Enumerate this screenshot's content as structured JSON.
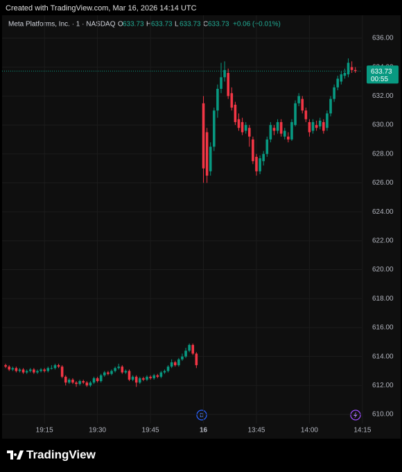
{
  "header": {
    "credit": "Created with TradingView.com, Mar 16, 2026 14:14 UTC",
    "symbol": "Meta Platforms, Inc. · 1 · NASDAQ",
    "ohlc": [
      {
        "label": "O",
        "value": 633.73
      },
      {
        "label": "H",
        "value": 633.73
      },
      {
        "label": "L",
        "value": 633.73
      },
      {
        "label": "C",
        "value": 633.73
      }
    ],
    "change": "+0.06",
    "change_pct": "(+0.01%)"
  },
  "footer": {
    "brand": "TradingView"
  },
  "chart_data": {
    "type": "candlestick",
    "up_color": "#089981",
    "down_color": "#f23645",
    "grid": true,
    "xlim": [
      -1,
      102
    ],
    "xticks": [
      {
        "value": 11,
        "label": "19:15"
      },
      {
        "value": 26,
        "label": "19:30"
      },
      {
        "value": 41,
        "label": "19:45"
      },
      {
        "value": 56,
        "label": "16"
      },
      {
        "value": 71,
        "label": "13:45"
      },
      {
        "value": 86,
        "label": "14:00"
      },
      {
        "value": 101,
        "label": "14:15"
      }
    ],
    "ylim": [
      610,
      636
    ],
    "yticks": [
      {
        "value": 610,
        "label": "610.00"
      },
      {
        "value": 612,
        "label": "612.00"
      },
      {
        "value": 614,
        "label": "614.00"
      },
      {
        "value": 616,
        "label": "616.00"
      },
      {
        "value": 618,
        "label": "618.00"
      },
      {
        "value": 620,
        "label": "620.00"
      },
      {
        "value": 622,
        "label": "622.00"
      },
      {
        "value": 624,
        "label": "624.00"
      },
      {
        "value": 626,
        "label": "626.00"
      },
      {
        "value": 628,
        "label": "628.00"
      },
      {
        "value": 630,
        "label": "630.00"
      },
      {
        "value": 632,
        "label": "632.00"
      },
      {
        "value": 634,
        "label": "634.00"
      },
      {
        "value": 636,
        "label": "636.00"
      }
    ],
    "last_price": 633.73,
    "countdown": "00:55",
    "open": [
      613.4,
      613.3,
      613.1,
      613.2,
      613.0,
      613.1,
      612.9,
      613.0,
      613.1,
      612.9,
      613.0,
      613.1,
      613.0,
      613.2,
      613.2,
      613.4,
      613.3,
      612.6,
      612.2,
      612.4,
      612.2,
      612.1,
      612.3,
      612.2,
      612.0,
      612.2,
      612.5,
      612.3,
      612.7,
      612.9,
      612.8,
      613.0,
      613.2,
      613.3,
      612.9,
      613.0,
      612.4,
      612.6,
      612.2,
      612.5,
      612.4,
      612.6,
      612.5,
      612.7,
      612.6,
      612.9,
      613.0,
      613.3,
      613.6,
      613.4,
      613.8,
      614.0,
      614.4,
      614.8,
      614.2,
      null,
      631.5,
      629.5,
      626.8,
      628.5,
      631.0,
      632.5,
      633.3,
      633.6,
      632.2,
      631.4,
      630.4,
      630.2,
      629.6,
      629.8,
      629.0,
      627.8,
      626.8,
      627.5,
      628.0,
      629.0,
      629.8,
      629.6,
      630.2,
      629.2,
      629.2,
      629.0,
      630.0,
      631.5,
      631.8,
      631.0,
      630.2,
      629.6,
      630.0,
      629.9,
      630.2,
      629.8,
      630.8,
      631.8,
      632.6,
      633.0,
      633.4,
      633.5,
      634.0,
      633.8
    ],
    "high": [
      613.5,
      613.4,
      613.3,
      613.3,
      613.2,
      613.2,
      613.1,
      613.2,
      613.2,
      613.1,
      613.2,
      613.2,
      613.3,
      613.4,
      613.5,
      613.5,
      613.4,
      612.7,
      612.5,
      612.5,
      612.3,
      612.4,
      612.4,
      612.3,
      612.3,
      612.6,
      612.6,
      612.8,
      613.0,
      613.0,
      613.1,
      613.3,
      613.5,
      613.4,
      613.1,
      613.1,
      612.7,
      612.7,
      612.6,
      612.6,
      612.7,
      612.7,
      612.8,
      612.8,
      613.0,
      613.1,
      613.4,
      613.8,
      613.7,
      613.9,
      614.2,
      614.6,
      614.9,
      614.9,
      614.3,
      null,
      632.0,
      629.8,
      628.8,
      631.2,
      632.8,
      634.3,
      634.4,
      633.9,
      632.6,
      631.6,
      630.8,
      630.5,
      630.2,
      630.0,
      629.2,
      628.0,
      627.9,
      628.2,
      629.2,
      630.2,
      630.0,
      630.4,
      630.4,
      629.8,
      629.5,
      630.4,
      631.7,
      632.2,
      632.0,
      631.2,
      630.4,
      630.4,
      630.3,
      630.5,
      630.4,
      631.0,
      632.0,
      632.8,
      633.4,
      633.7,
      633.9,
      634.6,
      634.4,
      634.0
    ],
    "low": [
      613.2,
      613.0,
      613.0,
      612.9,
      612.9,
      612.8,
      612.8,
      612.9,
      612.8,
      612.8,
      612.9,
      612.9,
      612.9,
      613.1,
      613.1,
      613.2,
      612.5,
      612.0,
      612.1,
      612.1,
      611.9,
      612.0,
      612.1,
      611.9,
      611.9,
      612.1,
      612.2,
      612.2,
      612.6,
      612.7,
      612.7,
      612.9,
      613.1,
      612.8,
      612.8,
      612.3,
      612.3,
      611.9,
      612.1,
      612.3,
      612.3,
      612.4,
      612.4,
      612.5,
      612.5,
      612.8,
      612.9,
      613.2,
      613.3,
      613.3,
      613.7,
      613.9,
      614.3,
      614.1,
      613.2,
      null,
      626.0,
      626.0,
      626.5,
      628.2,
      630.5,
      632.2,
      633.0,
      631.8,
      631.0,
      630.0,
      629.6,
      629.3,
      629.4,
      628.5,
      627.3,
      626.5,
      626.6,
      627.2,
      627.8,
      628.8,
      629.3,
      629.4,
      629.2,
      629.0,
      628.8,
      628.9,
      629.9,
      631.3,
      630.8,
      630.2,
      629.2,
      629.4,
      629.6,
      629.7,
      629.4,
      629.6,
      630.6,
      631.6,
      632.4,
      632.8,
      633.2,
      633.3,
      633.6,
      633.6
    ],
    "close": [
      613.3,
      613.1,
      613.2,
      613.0,
      613.1,
      612.9,
      613.0,
      613.1,
      612.9,
      613.0,
      613.1,
      613.0,
      613.2,
      613.2,
      613.4,
      613.3,
      612.6,
      612.2,
      612.4,
      612.2,
      612.1,
      612.3,
      612.2,
      612.0,
      612.2,
      612.5,
      612.3,
      612.7,
      612.9,
      612.8,
      613.0,
      613.2,
      613.3,
      612.9,
      613.0,
      612.4,
      612.6,
      612.2,
      612.5,
      612.4,
      612.6,
      612.5,
      612.7,
      612.6,
      612.9,
      613.0,
      613.3,
      613.6,
      613.4,
      613.8,
      614.0,
      614.4,
      614.8,
      614.2,
      613.4,
      null,
      627.0,
      626.5,
      628.5,
      631.0,
      632.5,
      633.3,
      633.8,
      632.0,
      631.2,
      630.2,
      629.8,
      629.5,
      630.0,
      629.2,
      627.5,
      626.8,
      627.7,
      628.0,
      629.0,
      630.0,
      629.6,
      630.2,
      629.4,
      629.6,
      629.0,
      630.2,
      631.5,
      632.0,
      631.0,
      630.4,
      629.5,
      630.2,
      629.8,
      630.3,
      629.6,
      630.8,
      631.8,
      632.6,
      633.2,
      633.5,
      633.6,
      634.3,
      633.8,
      633.73
    ]
  }
}
